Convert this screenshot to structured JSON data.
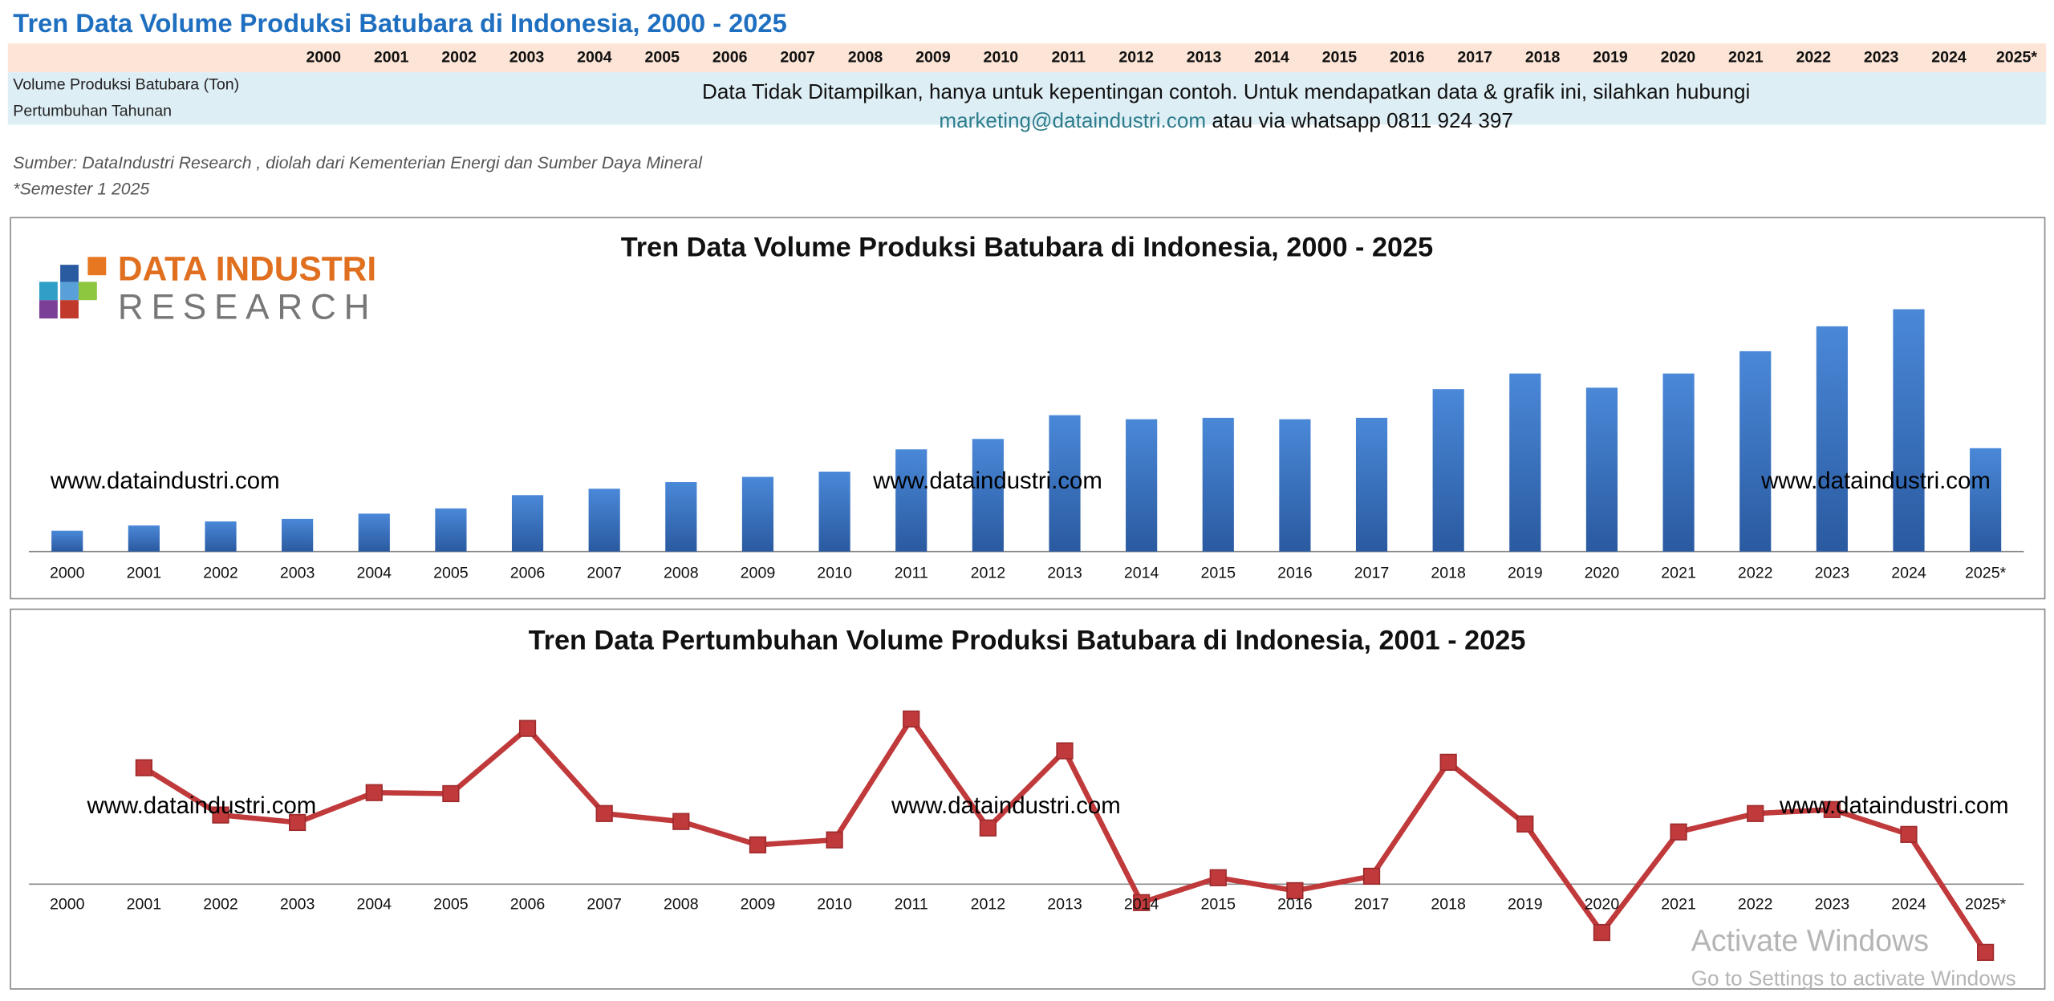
{
  "header": {
    "title": "Tren Data Volume Produksi Batubara di Indonesia, 2000 - 2025"
  },
  "table": {
    "row_labels": [
      "Volume Produksi Batubara (Ton)",
      "Pertumbuhan Tahunan"
    ],
    "notice": "Data Tidak Ditampilkan, hanya untuk kepentingan contoh. Untuk mendapatkan data & grafik  ini, silahkan hubungi",
    "contact_email": "marketing@dataindustri.com",
    "contact_rest": "atau via whatsapp 0811 924 397"
  },
  "source": "Sumber: DataIndustri Research , diolah dari Kementerian Energi dan Sumber Daya Mineral",
  "note": "*Semester 1 2025",
  "logo": {
    "line1": "DATA INDUSTRI",
    "line2": "RESEARCH"
  },
  "watermark": "www.dataindustri.com",
  "os_overlay": {
    "line1": "Activate Windows",
    "line2": "Go to Settings to activate Windows"
  },
  "chart_data": [
    {
      "type": "bar",
      "title": "Tren Data Volume Produksi Batubara di Indonesia, 2000 - 2025",
      "categories": [
        "2000",
        "2001",
        "2002",
        "2003",
        "2004",
        "2005",
        "2006",
        "2007",
        "2008",
        "2009",
        "2010",
        "2011",
        "2012",
        "2013",
        "2014",
        "2015",
        "2016",
        "2017",
        "2018",
        "2019",
        "2020",
        "2021",
        "2022",
        "2023",
        "2024",
        "2025*"
      ],
      "values": [
        72,
        90,
        104,
        113,
        131,
        149,
        195,
        217,
        240,
        258,
        276,
        353,
        389,
        471,
        457,
        462,
        457,
        462,
        561,
        615,
        566,
        615,
        692,
        778,
        837,
        357
      ],
      "color": "#3a78c9",
      "ylim": [
        0,
        900
      ]
    },
    {
      "type": "line",
      "title": "Tren Data Pertumbuhan Volume Produksi Batubara di Indonesia, 2001 - 2025",
      "categories": [
        "2000",
        "2001",
        "2002",
        "2003",
        "2004",
        "2005",
        "2006",
        "2007",
        "2008",
        "2009",
        "2010",
        "2011",
        "2012",
        "2013",
        "2014",
        "2015",
        "2016",
        "2017",
        "2018",
        "2019",
        "2020",
        "2021",
        "2022",
        "2023",
        "2024",
        "2025*"
      ],
      "values": [
        null,
        23.4,
        13.9,
        12.4,
        18.4,
        18.2,
        31.3,
        14.2,
        12.6,
        7.9,
        8.9,
        33.2,
        11.3,
        26.8,
        -3.7,
        1.3,
        -1.3,
        1.6,
        24.5,
        12.1,
        -9.7,
        10.5,
        14.2,
        15.0,
        10.0,
        -13.7
      ],
      "color": "#c0393b",
      "ylim": [
        -20,
        40
      ]
    }
  ]
}
